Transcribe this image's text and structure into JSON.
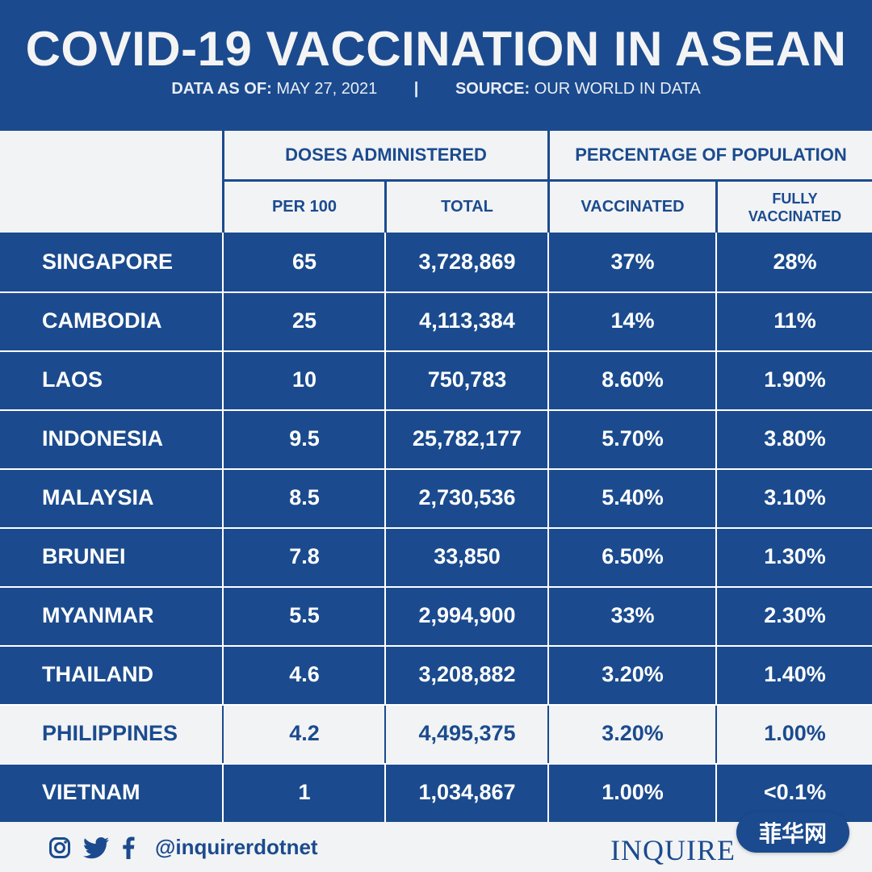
{
  "header": {
    "title": "COVID-19 VACCINATION IN ASEAN",
    "date_label": "DATA AS OF:",
    "date_value": "MAY 27, 2021",
    "separator": "|",
    "source_label": "SOURCE:",
    "source_value": "OUR WORLD IN DATA"
  },
  "table": {
    "group_headers": [
      "DOSES ADMINISTERED",
      "PERCENTAGE OF POPULATION"
    ],
    "sub_headers": [
      "PER 100",
      "TOTAL",
      "VACCINATED",
      "FULLY VACCINATED"
    ]
  },
  "chart_data": {
    "type": "table",
    "title": "COVID-19 VACCINATION IN ASEAN",
    "columns": [
      "PER 100",
      "TOTAL",
      "VACCINATED",
      "FULLY VACCINATED"
    ],
    "column_groups": [
      {
        "label": "DOSES ADMINISTERED",
        "columns": [
          "PER 100",
          "TOTAL"
        ]
      },
      {
        "label": "PERCENTAGE OF POPULATION",
        "columns": [
          "VACCINATED",
          "FULLY VACCINATED"
        ]
      }
    ],
    "rows": [
      {
        "country": "SINGAPORE",
        "per100": "65",
        "total": "3,728,869",
        "vaccinated": "37%",
        "fully": "28%"
      },
      {
        "country": "CAMBODIA",
        "per100": "25",
        "total": "4,113,384",
        "vaccinated": "14%",
        "fully": "11%"
      },
      {
        "country": "LAOS",
        "per100": "10",
        "total": "750,783",
        "vaccinated": "8.60%",
        "fully": "1.90%"
      },
      {
        "country": "INDONESIA",
        "per100": "9.5",
        "total": "25,782,177",
        "vaccinated": "5.70%",
        "fully": "3.80%"
      },
      {
        "country": "MALAYSIA",
        "per100": "8.5",
        "total": "2,730,536",
        "vaccinated": "5.40%",
        "fully": "3.10%"
      },
      {
        "country": "BRUNEI",
        "per100": "7.8",
        "total": "33,850",
        "vaccinated": "6.50%",
        "fully": "1.30%"
      },
      {
        "country": "MYANMAR",
        "per100": "5.5",
        "total": "2,994,900",
        "vaccinated": "33%",
        "fully": "2.30%"
      },
      {
        "country": "THAILAND",
        "per100": "4.6",
        "total": "3,208,882",
        "vaccinated": "3.20%",
        "fully": "1.40%"
      },
      {
        "country": "PHILIPPINES",
        "per100": "4.2",
        "total": "4,495,375",
        "vaccinated": "3.20%",
        "fully": "1.00%"
      },
      {
        "country": "VIETNAM",
        "per100": "1",
        "total": "1,034,867",
        "vaccinated": "1.00%",
        "fully": "<0.1%"
      }
    ],
    "highlight_row": "PHILIPPINES"
  },
  "footer": {
    "icons": [
      "instagram-icon",
      "twitter-icon",
      "facebook-icon"
    ],
    "handle": "@inquirerdotnet",
    "brand": "INQUIRE",
    "watermark": "菲华网"
  },
  "colors": {
    "navy": "#1b4b8e",
    "light": "#f2f3f5",
    "text_light": "#ffffff"
  }
}
